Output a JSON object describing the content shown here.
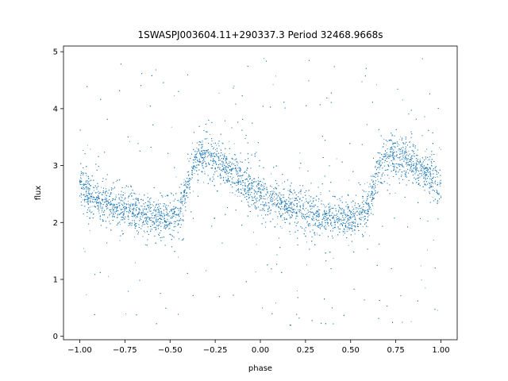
{
  "chart_data": {
    "type": "scatter",
    "title": "1SWASPJ003604.11+290337.3 Period 32468.9668s",
    "xlabel": "phase",
    "ylabel": "flux",
    "xlim": [
      -1.09,
      1.09
    ],
    "ylim": [
      -0.06,
      5.1
    ],
    "xticks": [
      -1.0,
      -0.75,
      -0.5,
      -0.25,
      0.0,
      0.25,
      0.5,
      0.75,
      1.0
    ],
    "xtick_labels": [
      "−1.00",
      "−0.75",
      "−0.50",
      "−0.25",
      "0.00",
      "0.25",
      "0.50",
      "0.75",
      "1.00"
    ],
    "yticks": [
      0,
      1,
      2,
      3,
      4,
      5
    ],
    "ytick_labels": [
      "0",
      "1",
      "2",
      "3",
      "4",
      "5"
    ],
    "grid": false,
    "marker_color": "#1f77b4",
    "series": [
      {
        "phase": [
          -1.0,
          -0.95,
          -0.9,
          -0.85,
          -0.8,
          -0.75,
          -0.7,
          -0.65,
          -0.6,
          -0.55,
          -0.5,
          -0.45,
          -0.4,
          -0.35,
          -0.3,
          -0.25,
          -0.2,
          -0.15,
          -0.1,
          -0.05,
          0.0,
          0.05,
          0.1,
          0.15,
          0.2,
          0.25,
          0.3,
          0.35,
          0.4,
          0.45,
          0.5,
          0.55,
          0.6,
          0.65,
          0.7,
          0.75,
          0.8,
          0.85,
          0.9,
          0.95,
          1.0
        ],
        "flux_median": [
          2.6,
          2.5,
          2.4,
          2.35,
          2.3,
          2.25,
          2.2,
          2.15,
          2.1,
          2.08,
          2.05,
          2.15,
          2.7,
          3.15,
          3.2,
          3.1,
          3.0,
          2.9,
          2.75,
          2.6,
          2.5,
          2.4,
          2.35,
          2.3,
          2.25,
          2.2,
          2.15,
          2.12,
          2.1,
          2.08,
          2.05,
          2.1,
          2.3,
          2.9,
          3.15,
          3.2,
          3.1,
          3.0,
          2.9,
          2.75,
          2.6
        ]
      }
    ]
  }
}
